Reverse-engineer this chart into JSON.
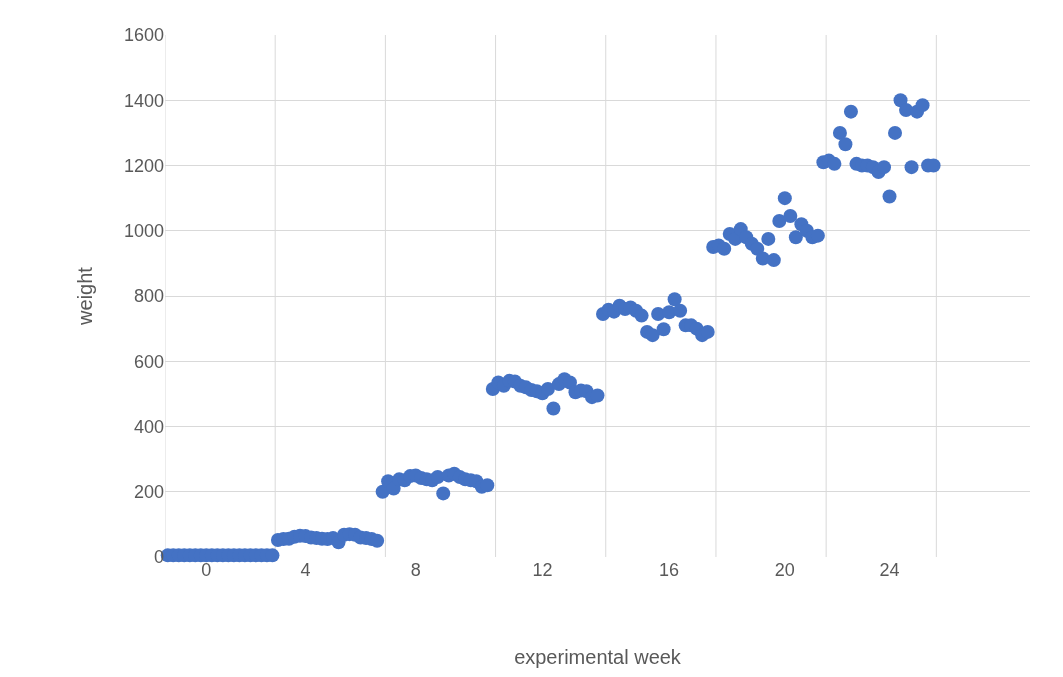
{
  "chart_data": {
    "type": "scatter",
    "xlabel": "experimental week",
    "ylabel": "weight",
    "categories": [
      null,
      null,
      null,
      null,
      null,
      null,
      null,
      "0",
      null,
      null,
      null,
      null,
      null,
      null,
      null,
      null,
      null,
      null,
      null,
      null,
      null,
      null,
      null,
      null,
      null,
      "4",
      null,
      null,
      null,
      null,
      null,
      null,
      null,
      null,
      null,
      null,
      null,
      null,
      null,
      null,
      null,
      null,
      null,
      null,
      null,
      "8",
      null,
      null,
      null,
      null,
      null,
      null,
      null,
      null,
      null,
      null,
      null,
      null,
      null,
      null,
      null,
      null,
      null,
      null,
      null,
      null,
      null,
      null,
      "12",
      null,
      null,
      null,
      null,
      null,
      null,
      null,
      null,
      null,
      null,
      null,
      null,
      null,
      null,
      null,
      null,
      null,
      null,
      null,
      null,
      null,
      null,
      "16",
      null,
      null,
      null,
      null,
      null,
      null,
      null,
      null,
      null,
      null,
      null,
      null,
      null,
      null,
      null,
      null,
      null,
      null,
      null,
      null,
      "20",
      null,
      null,
      null,
      null,
      null,
      null,
      null,
      null,
      null,
      null,
      null,
      null,
      null,
      null,
      null,
      null,
      null,
      null,
      "24",
      null,
      null,
      null,
      null,
      null,
      null,
      null,
      null,
      null,
      null,
      null,
      null,
      null,
      null,
      null,
      null,
      null,
      null,
      null,
      null,
      null,
      null,
      null,
      null,
      null
    ],
    "series": [
      {
        "color": "#4472c4",
        "values": [
          5,
          5,
          5,
          5,
          5,
          5,
          5,
          5,
          5,
          5,
          5,
          5,
          5,
          5,
          5,
          5,
          5,
          5,
          5,
          5,
          52,
          55,
          56,
          62,
          65,
          64,
          60,
          58,
          56,
          55,
          58,
          45,
          68,
          70,
          68,
          60,
          58,
          55,
          50,
          200,
          232,
          210,
          238,
          235,
          248,
          250,
          242,
          238,
          235,
          245,
          195,
          250,
          255,
          245,
          238,
          235,
          232,
          215,
          220,
          515,
          535,
          525,
          540,
          538,
          525,
          520,
          512,
          508,
          502,
          515,
          455,
          530,
          545,
          535,
          505,
          510,
          508,
          490,
          495,
          745,
          758,
          752,
          770,
          760,
          765,
          755,
          740,
          690,
          680,
          745,
          698,
          750,
          790,
          755,
          710,
          710,
          700,
          680,
          690,
          950,
          955,
          945,
          990,
          975,
          1005,
          980,
          960,
          945,
          915,
          975,
          910,
          1030,
          1100,
          1045,
          980,
          1020,
          1000,
          980,
          985,
          1210,
          1215,
          1205,
          1300,
          1265,
          1365,
          1205,
          1200,
          1200,
          1195,
          1180,
          1195,
          1105,
          1300,
          1400,
          1370,
          1195,
          1365,
          1385,
          1200,
          1200,
          null,
          null,
          null,
          null,
          null,
          null,
          null,
          null,
          null,
          null,
          null,
          null,
          null,
          null,
          null,
          null,
          null
        ]
      }
    ],
    "ylim": [
      0,
      1600
    ],
    "yticks": [
      0,
      200,
      400,
      600,
      800,
      1000,
      1200,
      1400,
      1600
    ],
    "grid": true,
    "marker": "circle"
  }
}
